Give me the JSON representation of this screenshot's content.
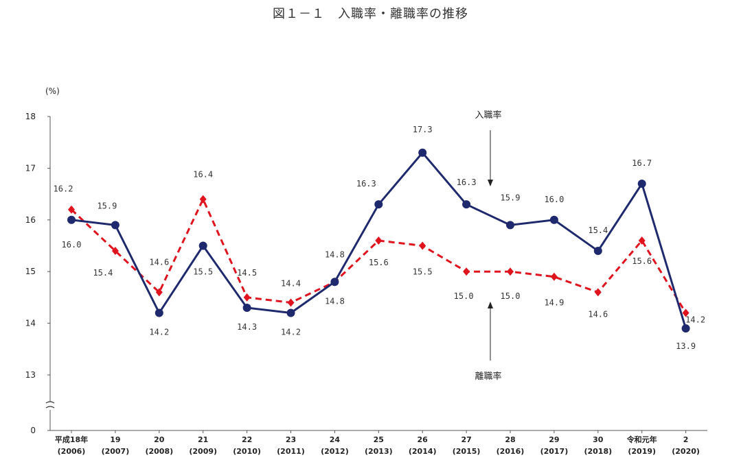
{
  "chart_data": {
    "type": "line",
    "title": "図１－１　入職率・離職率の推移",
    "ylabel": "(%)",
    "ylim": [
      13,
      18
    ],
    "yticks": [
      "18",
      "17",
      "16",
      "15",
      "14",
      "13",
      "0"
    ],
    "axis_break": true,
    "categories": [
      {
        "label": "平成18年",
        "sub": "(2006)"
      },
      {
        "label": "19",
        "sub": "(2007)"
      },
      {
        "label": "20",
        "sub": "(2008)"
      },
      {
        "label": "21",
        "sub": "(2009)"
      },
      {
        "label": "22",
        "sub": "(2010)"
      },
      {
        "label": "23",
        "sub": "(2011)"
      },
      {
        "label": "24",
        "sub": "(2012)"
      },
      {
        "label": "25",
        "sub": "(2013)"
      },
      {
        "label": "26",
        "sub": "(2014)"
      },
      {
        "label": "27",
        "sub": "(2015)"
      },
      {
        "label": "28",
        "sub": "(2016)"
      },
      {
        "label": "29",
        "sub": "(2017)"
      },
      {
        "label": "30",
        "sub": "(2018)"
      },
      {
        "label": "令和元年",
        "sub": "(2019)"
      },
      {
        "label": "2",
        "sub": "(2020)"
      }
    ],
    "series": [
      {
        "name": "入職率",
        "color": "#1f2a6e",
        "style": "solid",
        "marker": "circle",
        "values": [
          16.0,
          15.9,
          14.2,
          15.5,
          14.3,
          14.2,
          14.8,
          16.3,
          17.3,
          16.3,
          15.9,
          16.0,
          15.4,
          16.7,
          13.9
        ],
        "labels": [
          "16.0",
          "15.9",
          "14.2",
          "15.5",
          "14.3",
          "14.2",
          "14.8",
          "16.3",
          "17.3",
          "16.3",
          "15.9",
          "16.0",
          "15.4",
          "16.7",
          "13.9"
        ]
      },
      {
        "name": "離職率",
        "color": "#e0141e",
        "style": "dashed",
        "marker": "diamond",
        "values": [
          16.2,
          15.4,
          14.6,
          16.4,
          14.5,
          14.4,
          14.8,
          15.6,
          15.5,
          15.0,
          15.0,
          14.9,
          14.6,
          15.6,
          14.2
        ],
        "labels": [
          "16.2",
          "15.4",
          "14.6",
          "16.4",
          "14.5",
          "14.4",
          "14.8",
          "15.6",
          "15.5",
          "15.0",
          "15.0",
          "14.9",
          "14.6",
          "15.6",
          "14.2"
        ]
      }
    ],
    "grid": false
  }
}
